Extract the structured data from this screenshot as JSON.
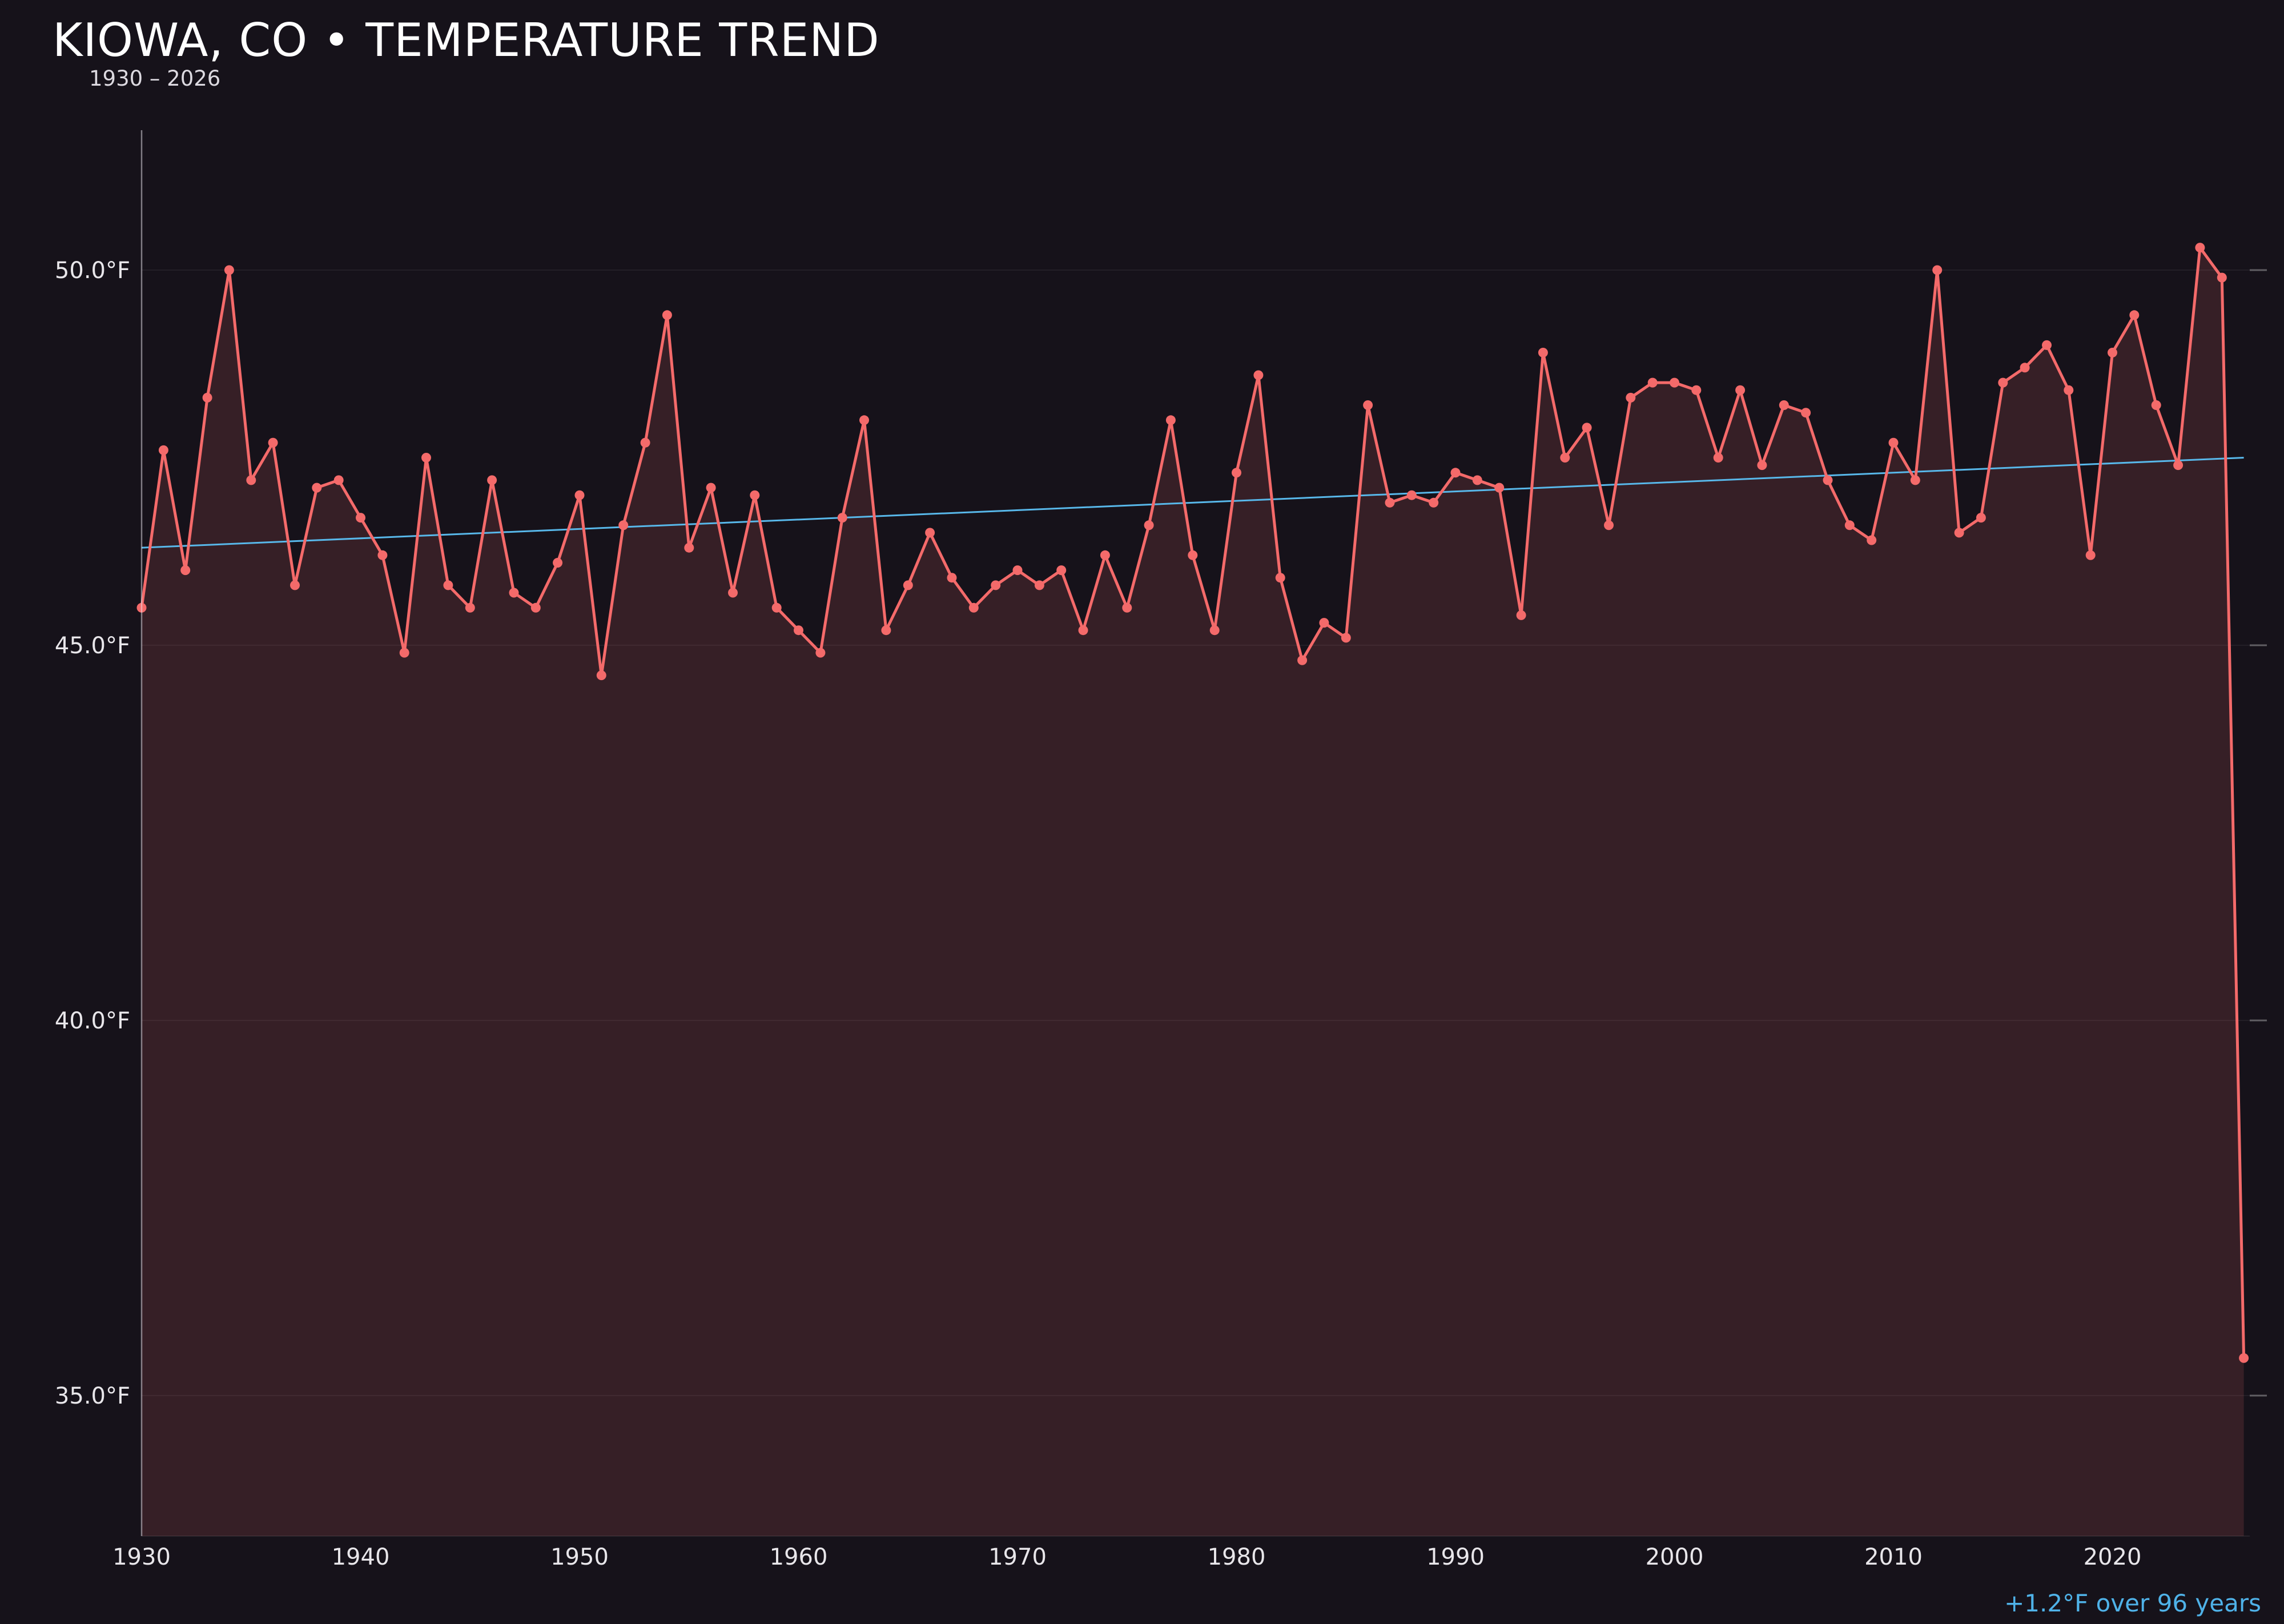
{
  "header": {
    "title": "KIOWA, CO • TEMPERATURE TREND",
    "subtitle": "1930 – 2026"
  },
  "footer": {
    "trend_annotation": "+1.2°F over 96 years"
  },
  "colors": {
    "background": "#16121a",
    "series_line": "#f46a6a",
    "series_fill": "rgba(244,106,106,0.15)",
    "trend_line": "#58b8ea",
    "annotation": "#4fb2e8",
    "axis_text": "#e8e6ea",
    "axis_line": "rgba(235,232,240,0.5)",
    "grid_line": "rgba(255,255,255,0.06)",
    "title_text": "#ffffff"
  },
  "chart_data": {
    "type": "line",
    "title": "KIOWA, CO • TEMPERATURE TREND",
    "subtitle": "1930 – 2026",
    "xlabel": "",
    "ylabel": "",
    "unit": "°F",
    "x_start": 1930,
    "x_end": 2026,
    "values": [
      45.5,
      47.6,
      46.0,
      48.3,
      50.0,
      47.2,
      47.7,
      45.8,
      47.1,
      47.2,
      46.7,
      46.2,
      44.9,
      47.5,
      45.8,
      45.5,
      47.2,
      45.7,
      45.5,
      46.1,
      47.0,
      44.6,
      46.6,
      47.7,
      49.4,
      46.3,
      47.1,
      45.7,
      47.0,
      45.5,
      45.2,
      44.9,
      46.7,
      48.0,
      45.2,
      45.8,
      46.5,
      45.9,
      45.5,
      45.8,
      46.0,
      45.8,
      46.0,
      45.2,
      46.2,
      45.5,
      46.6,
      48.0,
      46.2,
      45.2,
      47.3,
      48.6,
      45.9,
      44.8,
      45.3,
      45.1,
      48.2,
      46.9,
      47.0,
      46.9,
      47.3,
      47.2,
      47.1,
      45.4,
      48.9,
      47.5,
      47.9,
      46.6,
      48.3,
      48.5,
      48.5,
      48.4,
      47.5,
      48.4,
      47.4,
      48.2,
      48.1,
      47.2,
      46.6,
      46.4,
      47.7,
      47.2,
      50.0,
      46.5,
      46.7,
      48.5,
      48.7,
      49.0,
      48.4,
      46.2,
      48.9,
      49.4,
      48.2,
      47.4,
      50.3,
      49.9,
      35.5
    ],
    "markers": true,
    "grid": "horizontal-faint",
    "legend": "none",
    "ylim": [
      33.1,
      52.2
    ],
    "y_ticks": [
      50.0,
      45.0,
      40.0,
      35.0
    ],
    "y_tick_labels": [
      "50.0°F",
      "45.0°F",
      "40.0°F",
      "35.0°F"
    ],
    "x_ticks": [
      1930,
      1940,
      1950,
      1960,
      1970,
      1980,
      1990,
      2000,
      2010,
      2020
    ],
    "x_tick_labels": [
      "1930",
      "1940",
      "1950",
      "1960",
      "1970",
      "1980",
      "1990",
      "2000",
      "2010",
      "2020"
    ],
    "trend": {
      "start_year": 1930,
      "end_year": 2026,
      "start_value": 46.3,
      "end_value": 47.5,
      "change": "+1.2°F",
      "span_years": 96,
      "label": "+1.2°F over 96 years"
    }
  }
}
